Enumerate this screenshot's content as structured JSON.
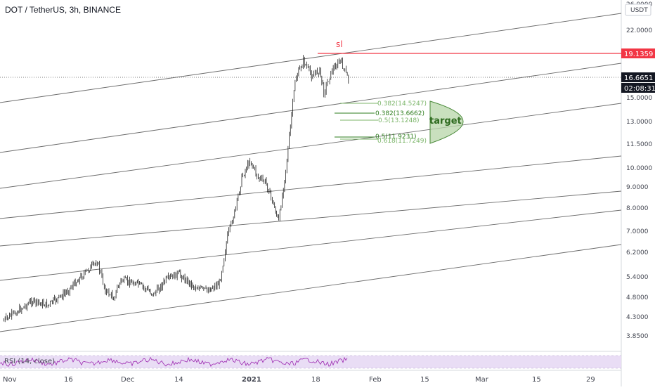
{
  "header": {
    "title": "DOT / TetherUS, 3h, BINANCE"
  },
  "axis": {
    "currency": "USDT",
    "price_ticks": [
      "26.0000",
      "22.0000",
      "15.0000",
      "13.0000",
      "11.5000",
      "10.0000",
      "9.0000",
      "8.0000",
      "7.0000",
      "6.2000",
      "5.4000",
      "4.8000",
      "4.3000",
      "3.8500"
    ],
    "date_ticks": [
      "Nov",
      "16",
      "Dec",
      "14",
      "2021",
      "18",
      "Feb",
      "15",
      "Mar",
      "15",
      "29"
    ]
  },
  "badges": {
    "sl_price": "19.1359",
    "last_price": "16.6651",
    "countdown": "02:08:31"
  },
  "annotations": {
    "sl": "sl",
    "target": "target",
    "fib": [
      {
        "label": "0.382(14.5247)",
        "color": "#7cb56a"
      },
      {
        "label": "0.382(13.6662)",
        "color": "#2e7d1e"
      },
      {
        "label": "0.5(13.1248)",
        "color": "#7cb56a"
      },
      {
        "label": "0.5(11.9231)",
        "color": "#2e7d1e"
      },
      {
        "label": "0.618(11.7249)",
        "color": "#7cb56a"
      }
    ]
  },
  "rsi": {
    "label": "RSI (14, close)"
  },
  "colors": {
    "sl_line": "#f23645",
    "target_fill": "#b7d6a8",
    "target_stroke": "#4a8a3a",
    "rsi_line": "#9c27b0",
    "rsi_band": "#e9ddf5",
    "candles": "#000000"
  },
  "chart_data": {
    "type": "candlestick",
    "title": "DOT / TetherUS, 3h, BINANCE",
    "x_range": [
      "Nov",
      "Mar 29"
    ],
    "y_scale": "log",
    "y_range": [
      3.7,
      26.0
    ],
    "price_path": [
      [
        "Nov 1",
        4.2
      ],
      [
        "Nov 4",
        4.4
      ],
      [
        "Nov 8",
        4.7
      ],
      [
        "Nov 12",
        4.6
      ],
      [
        "Nov 16",
        4.9
      ],
      [
        "Nov 20",
        5.4
      ],
      [
        "Nov 24",
        5.9
      ],
      [
        "Nov 26",
        5.0
      ],
      [
        "Nov 28",
        4.8
      ],
      [
        "Dec 1",
        5.3
      ],
      [
        "Dec 5",
        5.2
      ],
      [
        "Dec 9",
        4.9
      ],
      [
        "Dec 12",
        5.3
      ],
      [
        "Dec 15",
        5.5
      ],
      [
        "Dec 19",
        5.1
      ],
      [
        "Dec 22",
        5.0
      ],
      [
        "Dec 25",
        5.2
      ],
      [
        "Dec 27",
        6.8
      ],
      [
        "Dec 29",
        8.0
      ],
      [
        "Jan 1",
        9.5
      ],
      [
        "Jan 3",
        10.5
      ],
      [
        "Jan 5",
        9.5
      ],
      [
        "Jan 7",
        9.2
      ],
      [
        "Jan 9",
        8.0
      ],
      [
        "Jan 10",
        7.4
      ],
      [
        "Jan 12",
        10.5
      ],
      [
        "Jan 14",
        16.5
      ],
      [
        "Jan 16",
        18.5
      ],
      [
        "Jan 18",
        17.0
      ],
      [
        "Jan 20",
        17.5
      ],
      [
        "Jan 21",
        15.5
      ],
      [
        "Jan 23",
        17.5
      ],
      [
        "Jan 25",
        18.5
      ],
      [
        "Jan 27",
        16.6
      ]
    ],
    "horizontal_levels": [
      {
        "name": "sl",
        "value": 19.1359
      },
      {
        "name": "last",
        "value": 16.6651
      }
    ],
    "fib_levels": [
      14.5247,
      13.6662,
      13.1248,
      11.9231,
      11.7249
    ],
    "target_zone": [
      11.7,
      14.5
    ],
    "indicator": "RSI (14, close)"
  }
}
